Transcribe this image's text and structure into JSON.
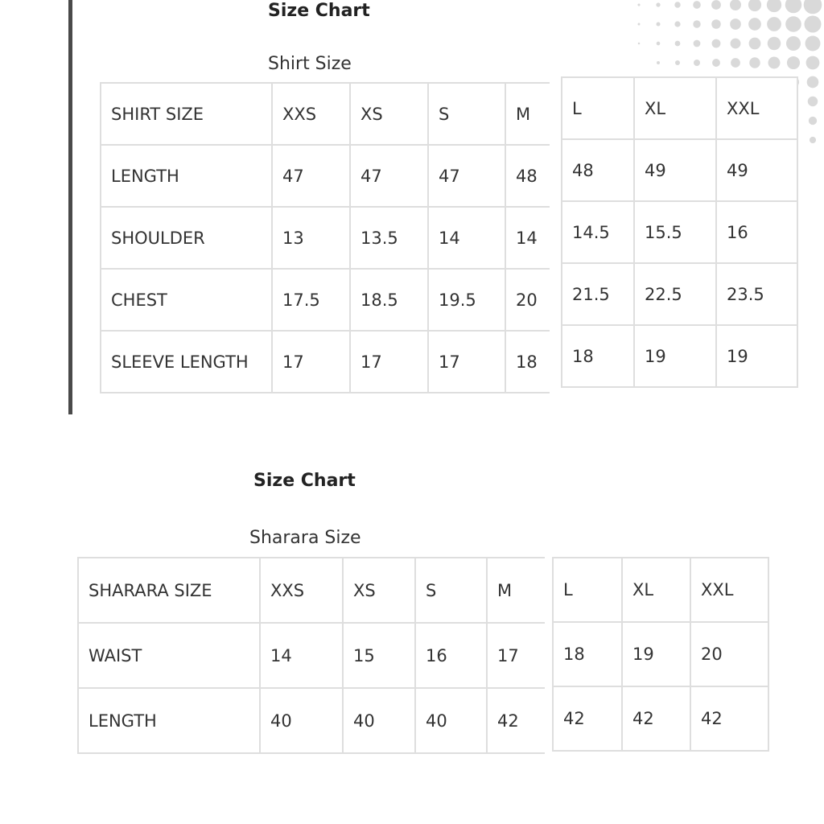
{
  "charts": [
    {
      "title": "Size Chart",
      "subtitle": "Shirt Size",
      "header_label": "SHIRT SIZE",
      "sizes": [
        "XXS",
        "XS",
        "S",
        "M",
        "L",
        "XL",
        "XXL"
      ],
      "rows": [
        {
          "label": "LENGTH",
          "values": [
            "47",
            "47",
            "47",
            "48",
            "48",
            "49",
            "49"
          ]
        },
        {
          "label": "SHOULDER",
          "values": [
            "13",
            "13.5",
            "14",
            "14",
            "14.5",
            "15.5",
            "16"
          ]
        },
        {
          "label": "CHEST",
          "values": [
            "17.5",
            "18.5",
            "19.5",
            "20",
            "21.5",
            "22.5",
            "23.5"
          ]
        },
        {
          "label": "SLEEVE LENGTH",
          "values": [
            "17",
            "17",
            "17",
            "18",
            "18",
            "19",
            "19"
          ]
        }
      ]
    },
    {
      "title": "Size Chart",
      "subtitle": "Sharara Size",
      "header_label": "SHARARA SIZE",
      "sizes": [
        "XXS",
        "XS",
        "S",
        "M",
        "L",
        "XL",
        "XXL"
      ],
      "rows": [
        {
          "label": "WAIST",
          "values": [
            "14",
            "15",
            "16",
            "17",
            "18",
            "19",
            "20"
          ]
        },
        {
          "label": "LENGTH",
          "values": [
            "40",
            "40",
            "40",
            "42",
            "42",
            "42",
            "42"
          ]
        }
      ]
    }
  ],
  "colors": {
    "border": "#dedede",
    "accent_bar": "#4a4a4a",
    "dots": "#d9d9d9"
  }
}
